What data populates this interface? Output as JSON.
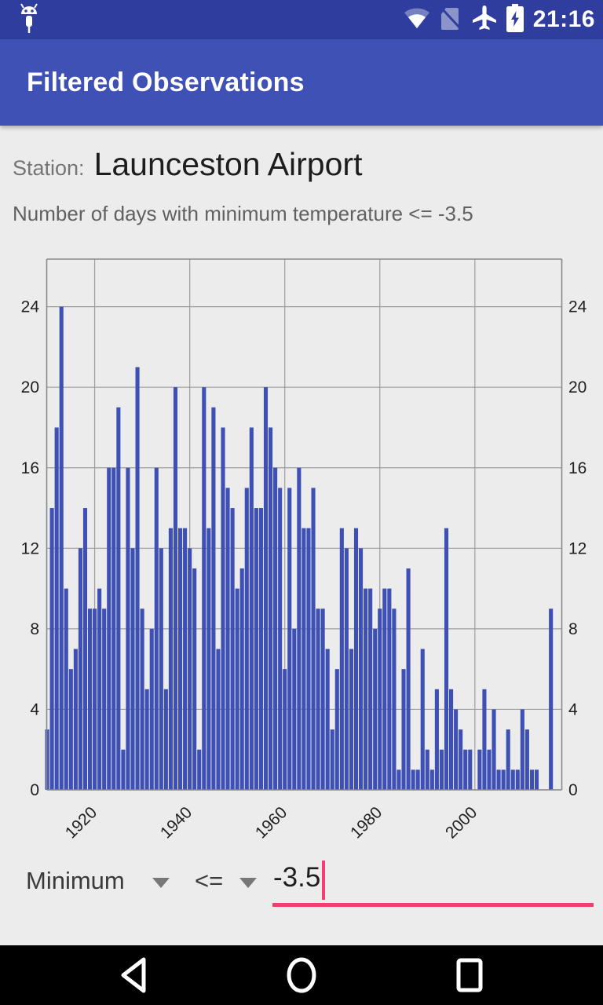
{
  "status_bar": {
    "time": "21:16"
  },
  "app_bar": {
    "title": "Filtered Observations"
  },
  "station": {
    "label": "Station:",
    "name": "Launceston Airport"
  },
  "subtitle": "Number of days with minimum temperature <= -3.5",
  "chart_data": {
    "type": "bar",
    "title": "Number of days with minimum temperature <= -3.5",
    "start_year": 1910,
    "values": [
      3,
      14,
      18,
      24,
      10,
      6,
      7,
      12,
      14,
      9,
      9,
      10,
      9,
      16,
      16,
      19,
      2,
      16,
      12,
      21,
      9,
      5,
      8,
      16,
      12,
      5,
      13,
      20,
      13,
      13,
      12,
      11,
      2,
      20,
      13,
      19,
      7,
      18,
      15,
      14,
      10,
      11,
      15,
      18,
      14,
      14,
      20,
      18,
      16,
      15,
      6,
      15,
      8,
      16,
      13,
      13,
      15,
      9,
      9,
      7,
      3,
      6,
      13,
      12,
      7,
      13,
      12,
      10,
      10,
      8,
      9,
      10,
      10,
      9,
      1,
      6,
      11,
      1,
      1,
      7,
      2,
      1,
      5,
      2,
      13,
      5,
      4,
      3,
      2,
      2,
      0,
      2,
      5,
      2,
      4,
      1,
      1,
      3,
      1,
      1,
      4,
      3,
      1,
      1,
      0,
      0,
      9
    ],
    "x_ticks": [
      1920,
      1940,
      1960,
      1980,
      2000
    ],
    "y_ticks": [
      0,
      4,
      8,
      12,
      16,
      20,
      24
    ],
    "ylim": [
      0,
      26.4
    ],
    "xlabel": "",
    "ylabel": "",
    "grid": true,
    "legend": "none",
    "bar_color": "#3E50B4",
    "grid_color": "#9e9e9e",
    "axis_color": "#8a8a8a",
    "tick_label_color": "#1f1f1f"
  },
  "controls": {
    "field": "Minimum",
    "operator": "<=",
    "value": "-3.5"
  },
  "nav": {
    "back": "back",
    "home": "home",
    "recents": "recents"
  },
  "colors": {
    "accent_pink": "#F43D71",
    "app_bar": "#3F51B5",
    "status_bar": "#2F3E9E"
  }
}
